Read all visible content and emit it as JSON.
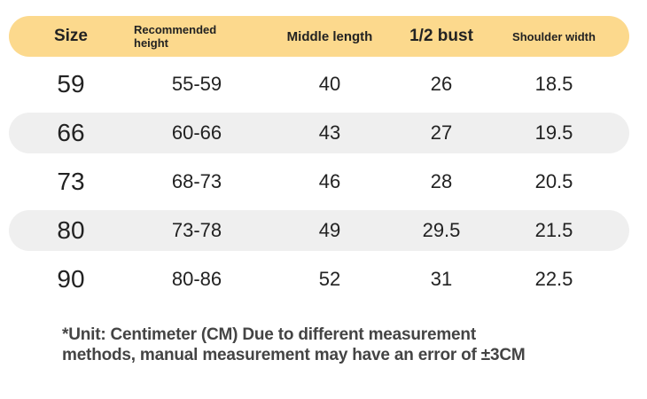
{
  "table": {
    "headers": [
      "Size",
      "Recommended height",
      "Middle length",
      "1/2 bust",
      "Shoulder width"
    ],
    "rows": [
      [
        "59",
        "55-59",
        "40",
        "26",
        "18.5"
      ],
      [
        "66",
        "60-66",
        "43",
        "27",
        "19.5"
      ],
      [
        "73",
        "68-73",
        "46",
        "28",
        "20.5"
      ],
      [
        "80",
        "73-78",
        "49",
        "29.5",
        "21.5"
      ],
      [
        "90",
        "80-86",
        "52",
        "31",
        "22.5"
      ]
    ]
  },
  "note": {
    "line1": "*Unit: Centimeter (CM) Due to different measurement",
    "line2": "methods, manual measurement may have an error of ±3CM"
  },
  "colors": {
    "header_bg": "#fcd98d",
    "alt_row_bg": "#efefef",
    "text": "#222222"
  }
}
